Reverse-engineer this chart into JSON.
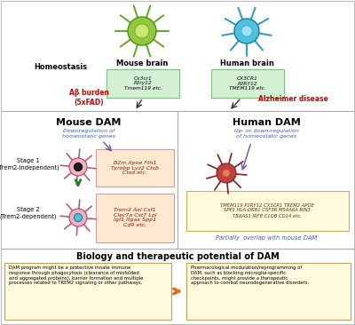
{
  "homeostasis_label": "Homeostasis",
  "mouse_brain_label": "Mouse brain",
  "human_brain_label": "Human brain",
  "mouse_genes_homeostasis": "Cx3cr1\nP2ry12\nTmem119 etc.",
  "human_genes_homeostasis": "CX3CR1\nP2RY12\nTMEM119 etc.",
  "ab_burden_label": "Aβ burden\n(5xFAD)",
  "alzheimer_label": "Alzheimer disease",
  "mouse_dam_label": "Mouse DAM",
  "mouse_dam_sub": "Downregulation of\nhomeostatic genes",
  "human_dam_label": "Human DAM",
  "human_dam_sub": "Up- or down-regulation\nof homeostatic genes",
  "stage1_label": "Stage 1\n(Trem2-independent)",
  "stage2_label": "Stage 2\n(Trem2-dependent)",
  "stage1_genes": "B2m Apoe Fth1\nTyrobp Lyz2 Ctsb\nCtsd etc.",
  "stage2_genes": "Trem2 Axl Csf1\nClec7a Cst7 Lpl\nIgf1 Itgax Spp1\nCd9 etc.",
  "human_dam_genes": "TMEM119 P2RY12 CX3CR1 TREM2 APOE\nSPP1 HLA-DRB1 CSF3R MS4A6A RIN3\nTBXAS1 IRF8 C1QB CD14 etc.",
  "partially_overlap": "Partially  overlap with mouse DAM",
  "bio_title": "Biology and therapeutic potential of DAM",
  "bio_left": "DAM program might be a protective innate immune\nresponse through phagocytosis (clearance of misfolded\nand aggregated proteins), barrier formation and multiple\nprocesses related to TREM2 signaling or other pathways.",
  "bio_right": "Pharmacological modulation/reprogramming of\nDAM, such as blocking microglia-specific\ncheckpoints, might provide a therapeutic\napproach to combat neurodegenerative disorders.",
  "bg_color": "#ffffff",
  "green_box_color": "#d4f0d4",
  "yellow_box_color": "#fffadc",
  "orange_box_color": "#ffe8d0",
  "red_label_color": "#cc0000",
  "blue_sub_color": "#4060a0",
  "purple_arrow_color": "#7050a0",
  "green_arrow_color": "#208020",
  "orange_arrow_color": "#e07020",
  "divider_line_color": "#aaaaaa",
  "box_border_mouse": "#c8a0a0",
  "box_border_human": "#c0b060",
  "box_border_green": "#80c080",
  "box_border_bottom": "#c0a060"
}
